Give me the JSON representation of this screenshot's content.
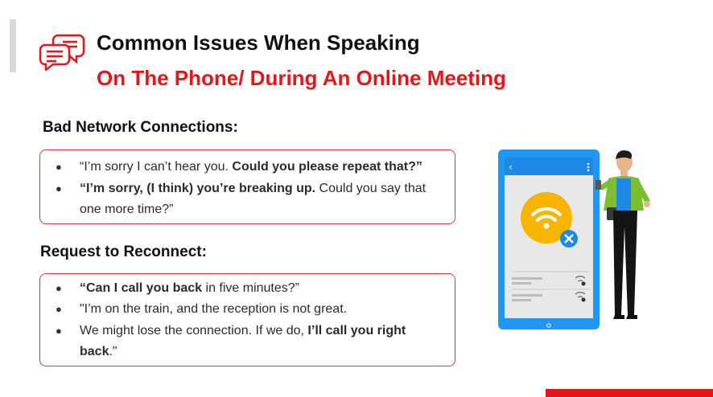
{
  "title": {
    "line1": "Common Issues When Speaking",
    "line2": "On The Phone/ During An Online Meeting"
  },
  "section1": {
    "heading": "Bad Network Connections:",
    "items": [
      {
        "plain1": "“I’m sorry I can’t hear you. ",
        "bold1": "Could you please repeat that?”",
        "plain2": ""
      },
      {
        "bold1": "“I’m sorry, (I think) you’re breaking up.",
        "plain1": "  Could you say that",
        "plain2": "one more time?”"
      }
    ]
  },
  "section2": {
    "heading": "Request to Reconnect:",
    "items": [
      {
        "bold1": "“Can I call you back",
        "plain1": " in five minutes?”"
      },
      {
        "plain1": "\"I’m on the train, and the reception is not great."
      },
      {
        "plain1": "We might lose the connection. If we do, ",
        "bold1": "I’ll call you right",
        "bold2": "back",
        "plain2": ".\""
      }
    ]
  },
  "colors": {
    "accent_red": "#e5161b",
    "box_border": "#d9393e",
    "phone_blue": "#2196f3",
    "wifi_yellow": "#f7b500"
  },
  "icons": {
    "title": "speech-bubbles-icon",
    "illustration": "person-with-phone-no-signal-icon"
  }
}
